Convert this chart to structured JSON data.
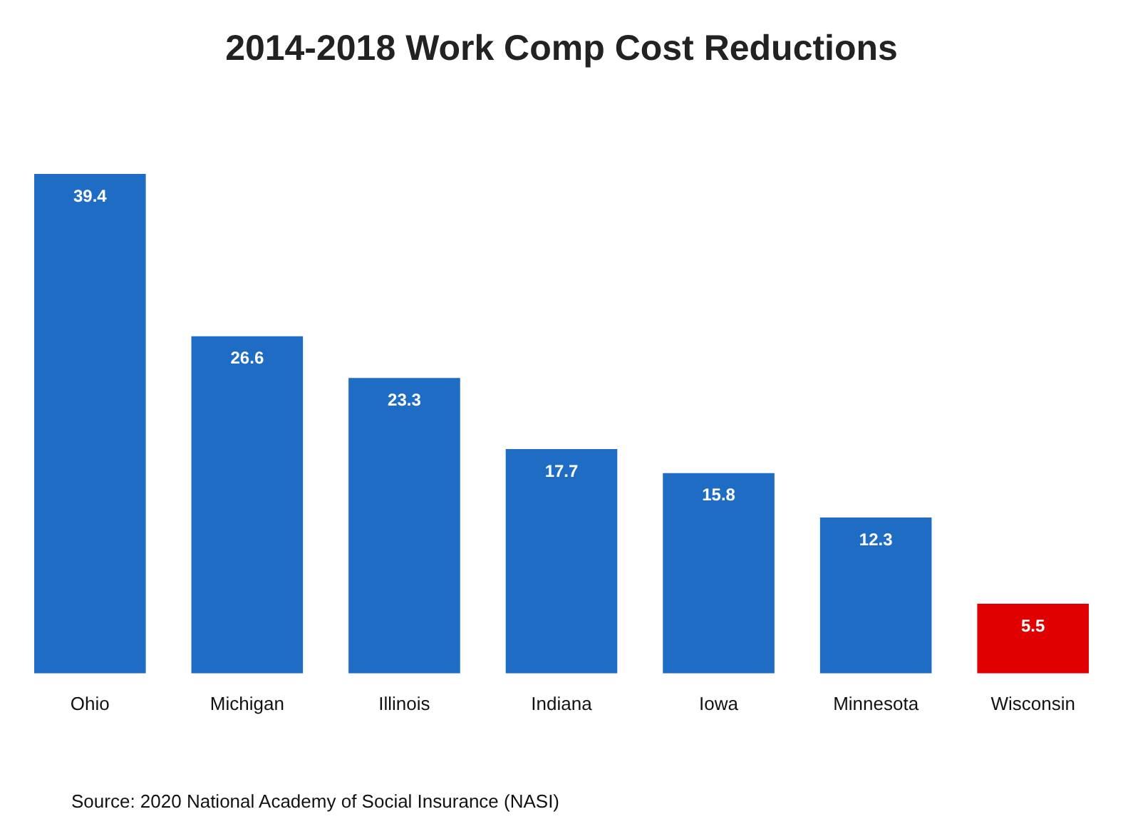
{
  "chart_data": {
    "type": "bar",
    "title": "2014-2018 Work Comp Cost Reductions",
    "categories": [
      "Ohio",
      "Michigan",
      "Illinois",
      "Indiana",
      "Iowa",
      "Minnesota",
      "Wisconsin"
    ],
    "values": [
      39.4,
      26.6,
      23.3,
      17.7,
      15.8,
      12.3,
      5.5
    ],
    "colors": [
      "#1f6cc4",
      "#1f6cc4",
      "#1f6cc4",
      "#1f6cc4",
      "#1f6cc4",
      "#1f6cc4",
      "#e00000"
    ],
    "data_labels": true,
    "grid": false,
    "legend": false,
    "annotations": [
      "Source: 2020 National Academy of Social Insurance (NASI)"
    ]
  }
}
